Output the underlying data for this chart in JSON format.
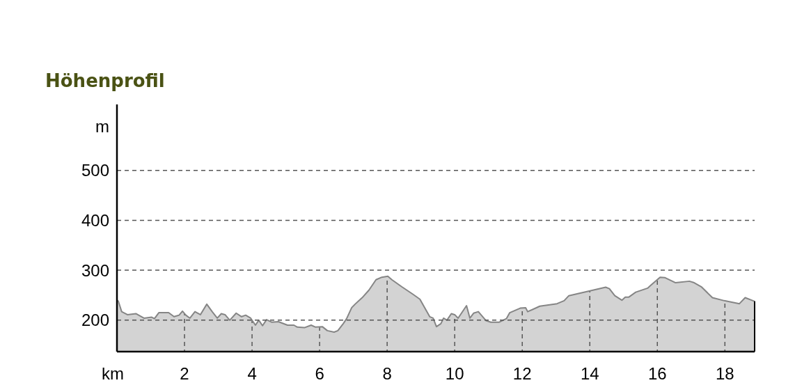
{
  "chart_data": {
    "type": "area",
    "title": "Höhenprofil",
    "xlabel": "km",
    "ylabel": "m",
    "x": [
      0,
      0.04,
      0.14,
      0.31,
      0.56,
      0.8,
      1.03,
      1.11,
      1.24,
      1.53,
      1.69,
      1.84,
      1.94,
      2.04,
      2.16,
      2.31,
      2.47,
      2.66,
      2.82,
      2.97,
      3.09,
      3.2,
      3.34,
      3.53,
      3.69,
      3.81,
      3.96,
      4.1,
      4.2,
      4.31,
      4.43,
      4.58,
      4.78,
      5.05,
      5.24,
      5.34,
      5.55,
      5.75,
      5.88,
      6.08,
      6.23,
      6.43,
      6.54,
      6.7,
      6.8,
      6.95,
      7.05,
      7.26,
      7.46,
      7.67,
      7.84,
      8.02,
      8.14,
      8.43,
      8.76,
      8.97,
      9.26,
      9.36,
      9.46,
      9.59,
      9.67,
      9.77,
      9.9,
      10.0,
      10.1,
      10.35,
      10.45,
      10.56,
      10.7,
      10.93,
      11.07,
      11.32,
      11.53,
      11.63,
      11.94,
      12.1,
      12.16,
      12.52,
      13.03,
      13.24,
      13.38,
      14.47,
      14.58,
      14.74,
      14.95,
      15.05,
      15.15,
      15.36,
      15.71,
      15.81,
      16.08,
      16.23,
      16.54,
      16.95,
      17.09,
      17.3,
      17.63,
      17.98,
      18.43,
      18.6,
      18.87
    ],
    "series": [
      {
        "color": "#d3d3d3",
        "values": [
          240,
          238,
          217,
          211,
          213,
          204,
          206,
          203,
          215,
          215,
          207,
          210,
          218,
          210,
          204,
          217,
          211,
          232,
          217,
          204,
          213,
          211,
          200,
          214,
          207,
          210,
          204,
          190,
          200,
          189,
          201,
          196,
          197,
          190,
          190,
          186,
          185,
          190,
          186,
          187,
          179,
          176,
          179,
          193,
          203,
          225,
          232,
          245,
          260,
          281,
          286,
          288,
          281,
          267,
          252,
          242,
          207,
          204,
          187,
          193,
          204,
          200,
          213,
          211,
          204,
          229,
          204,
          214,
          217,
          199,
          196,
          196,
          203,
          215,
          224,
          225,
          217,
          228,
          233,
          239,
          249,
          266,
          263,
          249,
          240,
          246,
          246,
          256,
          264,
          270,
          286,
          285,
          275,
          278,
          275,
          267,
          245,
          239,
          233,
          245,
          238
        ]
      }
    ],
    "xlim": [
      0,
      18.88
    ],
    "ylim": [
      137,
      632
    ],
    "xticks": [
      2,
      4,
      6,
      8,
      10,
      12,
      14,
      16,
      18
    ],
    "yticks": [
      200,
      300,
      400,
      500
    ],
    "grid": true
  }
}
